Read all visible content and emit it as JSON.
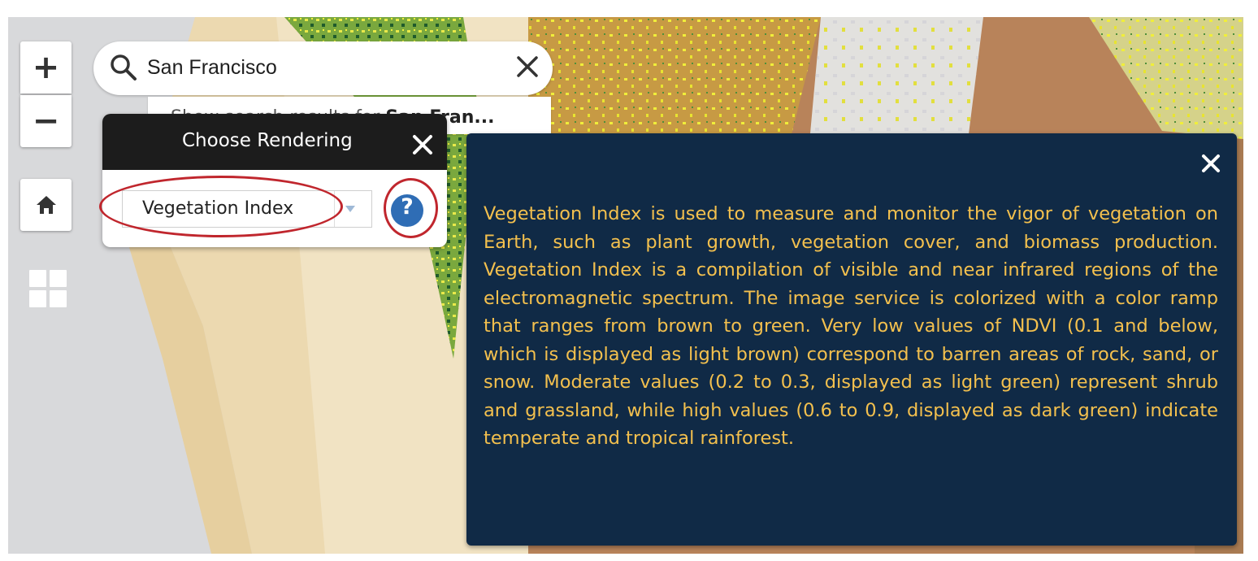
{
  "map": {
    "zoom_in_label": "+",
    "zoom_out_label": "−",
    "home_icon": "home-icon",
    "basemap_gallery_icon": "grid-icon"
  },
  "search": {
    "value": "San Francisco",
    "suggestion_prefix": "Show search results for ",
    "suggestion_term": "San Fran..."
  },
  "rendering_panel": {
    "title": "Choose Rendering",
    "selected_option": "Vegetation Index",
    "help_label": "?"
  },
  "info_popup": {
    "text": "Vegetation Index is used to measure and monitor the vigor of vegetation on Earth, such as plant growth, vegetation cover, and biomass production. Vegetation Index is a compilation of visible and near infrared regions of the electromagnetic spectrum. The image service is colorized with a color ramp that ranges from brown to green. Very low values of NDVI (0.1 and below, which is displayed as light brown) correspond to barren areas of rock, sand, or snow. Moderate values (0.2 to 0.3, displayed as light green) represent shrub and grassland, while high values (0.6 to 0.9, displayed as dark green) indicate temperate and tropical rainforest."
  },
  "colors": {
    "popup_background": "#102a46",
    "popup_text": "#f3c04e",
    "panel_header": "#1c1c1c",
    "help_button": "#2f6db5",
    "annotation": "#c0262d"
  }
}
